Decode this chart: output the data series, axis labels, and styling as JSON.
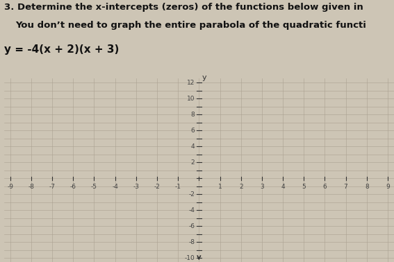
{
  "title_line1": "3. Determine the x-intercepts (zeros) of the functions below given in",
  "title_line2": "   You don’t need to graph the entire parabola of the quadratic functi",
  "equation": "y = -4(x + 2)(x + 3)",
  "xlim": [
    -9.3,
    9.3
  ],
  "ylim": [
    -10.5,
    12.5
  ],
  "x_axis_min": -9,
  "x_axis_max": 9,
  "y_axis_min": -10,
  "y_axis_max": 12,
  "background_color": "#cdc5b5",
  "grid_color": "#aaa090",
  "axis_color": "#333333",
  "text_color": "#111111",
  "label_color": "#444444",
  "font_size_title": 9.5,
  "font_size_eq": 11,
  "font_size_tick": 6.5
}
